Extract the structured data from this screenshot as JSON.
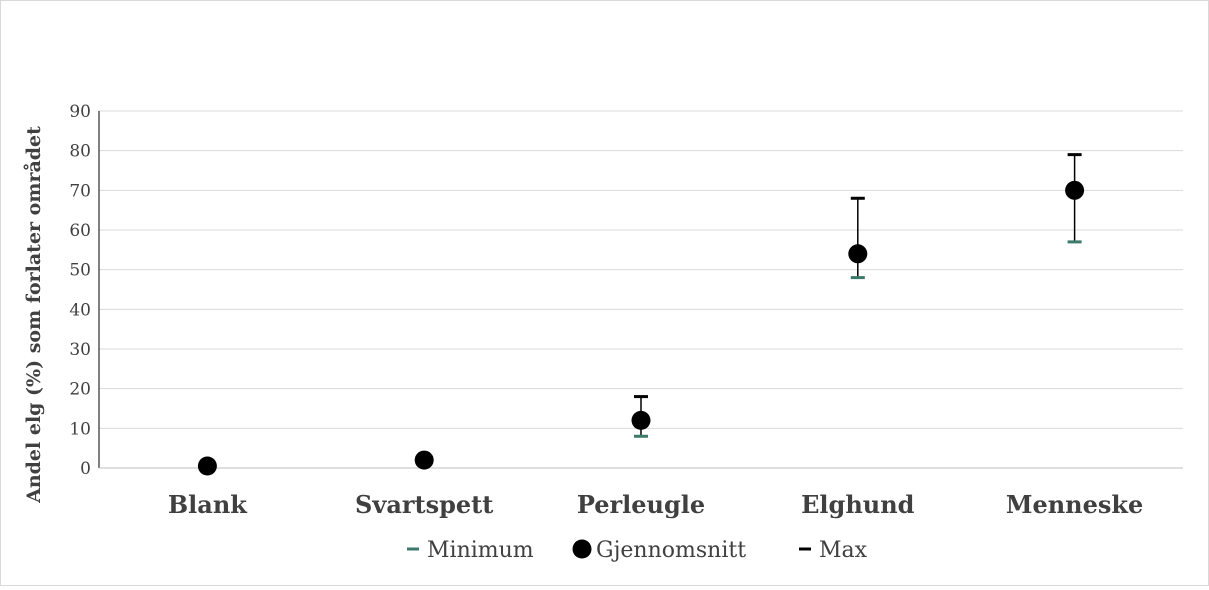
{
  "chart_data": {
    "type": "scatter",
    "title": "",
    "xlabel": "",
    "ylabel": "Andel elg (%) som forlater området",
    "ylim": [
      0,
      90
    ],
    "yticks": [
      0,
      10,
      20,
      30,
      40,
      50,
      60,
      70,
      80,
      90
    ],
    "grid": true,
    "legend_position": "bottom",
    "categories": [
      "Blank",
      "Svartspett",
      "Perleugle",
      "Elghund",
      "Menneske"
    ],
    "series": [
      {
        "name": "Minimum",
        "marker": "dash",
        "color": "#3c7a6b",
        "values": [
          0,
          2,
          8,
          48,
          57
        ]
      },
      {
        "name": "Gjennomsnitt",
        "marker": "circle",
        "color": "#000000",
        "values": [
          0.5,
          2,
          12,
          54,
          70
        ]
      },
      {
        "name": "Max",
        "marker": "dash",
        "color": "#000000",
        "values": [
          0,
          2,
          18,
          68,
          79
        ]
      }
    ],
    "colors": {
      "grid": "#d9d9d9",
      "axis": "#000000",
      "text": "#404040"
    }
  }
}
